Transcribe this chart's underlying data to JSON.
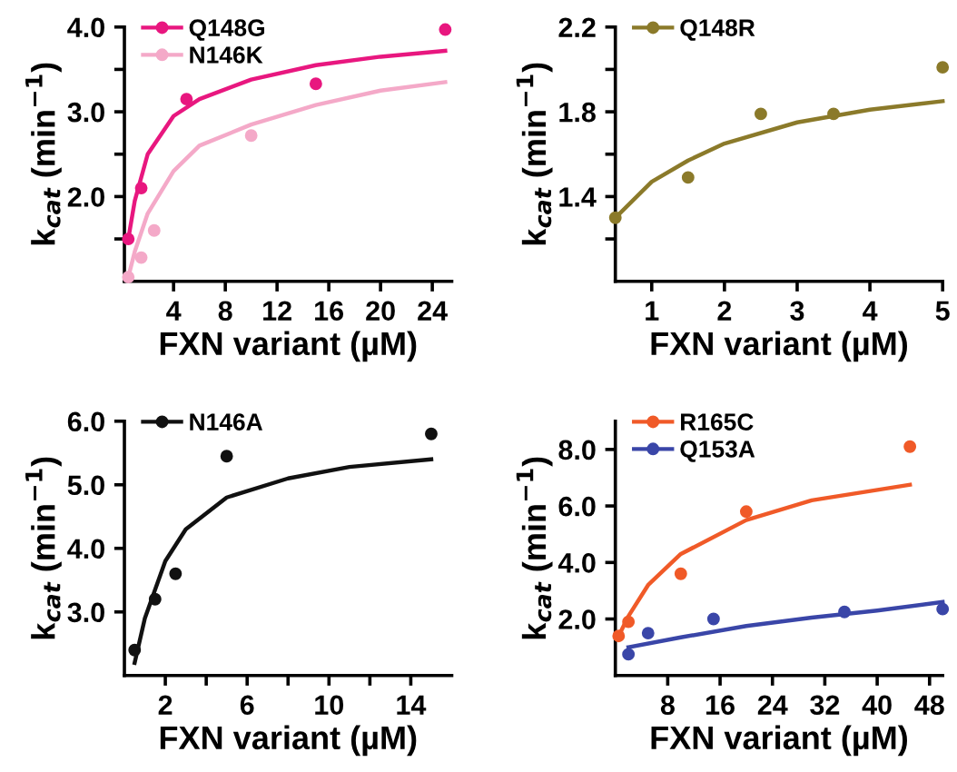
{
  "chart_data": [
    {
      "type": "scatter",
      "xlabel": "FXN variant (µM)",
      "ylabel": "k$_{cat}$ (min$^{−1}$)",
      "xlim": [
        0.2,
        25.5
      ],
      "ylim": [
        1.0,
        4.0
      ],
      "xticks": [
        4,
        8,
        12,
        16,
        20,
        24
      ],
      "yticks": [
        {
          "value": 1.5,
          "label": null
        },
        {
          "value": 2,
          "label": "2.0"
        },
        {
          "value": 2.5,
          "label": null
        },
        {
          "value": 3,
          "label": "3.0"
        },
        {
          "value": 3.5,
          "label": null
        },
        {
          "value": 4,
          "label": "4.0"
        }
      ],
      "legend": "top left",
      "grid": false,
      "series": [
        {
          "name": "Q148G",
          "marker": "circle",
          "color": "#e8177f",
          "x": [
            0.5,
            1.5,
            5,
            15,
            25
          ],
          "values": [
            1.5,
            2.1,
            3.15,
            3.33,
            3.97
          ]
        },
        {
          "name": "N146K",
          "marker": "circle",
          "color": "#f4a9c8",
          "x": [
            0.5,
            1.5,
            2.5,
            10
          ],
          "values": [
            1.05,
            1.28,
            1.6,
            2.72
          ]
        },
        {
          "type": "line",
          "color": "#e8177f",
          "x": [
            0.5,
            1,
            2,
            4,
            6,
            10,
            15,
            20,
            25
          ],
          "values": [
            1.5,
            1.95,
            2.5,
            2.95,
            3.15,
            3.38,
            3.55,
            3.65,
            3.72
          ]
        },
        {
          "type": "line",
          "color": "#f4a9c8",
          "x": [
            0.5,
            1,
            2,
            4,
            6,
            10,
            15,
            20,
            25
          ],
          "values": [
            1.05,
            1.35,
            1.8,
            2.3,
            2.6,
            2.85,
            3.08,
            3.25,
            3.35
          ]
        }
      ]
    },
    {
      "type": "scatter",
      "xlabel": "FXN variant (µM)",
      "ylabel": "k$_{cat}$ (min$^{−1}$)",
      "xlim": [
        0.5,
        5
      ],
      "ylim": [
        1.0,
        2.2
      ],
      "xticks": [
        1,
        2,
        3,
        4,
        5
      ],
      "yticks": [
        {
          "value": 1.2,
          "label": null
        },
        {
          "value": 1.4,
          "label": "1.4"
        },
        {
          "value": 1.6,
          "label": null
        },
        {
          "value": 1.8,
          "label": "1.8"
        },
        {
          "value": 2.0,
          "label": null
        },
        {
          "value": 2.2,
          "label": "2.2"
        }
      ],
      "legend": "top left",
      "grid": false,
      "series": [
        {
          "name": "Q148R",
          "marker": "circle",
          "color": "#8b7a2a",
          "x": [
            0.5,
            1.5,
            2.5,
            3.5,
            5
          ],
          "values": [
            1.3,
            1.49,
            1.79,
            1.79,
            2.01
          ]
        },
        {
          "type": "line",
          "color": "#8b7a2a",
          "x": [
            0.5,
            1,
            1.5,
            2,
            3,
            4,
            5
          ],
          "values": [
            1.3,
            1.47,
            1.57,
            1.65,
            1.75,
            1.81,
            1.85
          ]
        }
      ]
    },
    {
      "type": "scatter",
      "xlabel": "FXN variant (µM)",
      "ylabel": "k$_{cat}$ (min$^{−1}$)",
      "xlim": [
        0,
        16
      ],
      "ylim": [
        2.0,
        6.0
      ],
      "xticks": [
        2,
        {
          "value": 4,
          "label": null
        },
        6,
        {
          "value": 8,
          "label": null
        },
        10,
        {
          "value": 12,
          "label": null
        },
        14
      ],
      "yticks": [
        {
          "value": 3,
          "label": "3.0"
        },
        {
          "value": 4,
          "label": "4.0"
        },
        {
          "value": 5,
          "label": "5.0"
        },
        {
          "value": 6,
          "label": "6.0"
        }
      ],
      "legend": "top left",
      "grid": false,
      "series": [
        {
          "name": "N146A",
          "marker": "circle",
          "color": "#111111",
          "x": [
            0.5,
            1.5,
            2.5,
            5,
            15
          ],
          "values": [
            2.4,
            3.2,
            3.6,
            5.45,
            5.8
          ]
        },
        {
          "type": "line",
          "color": "#111111",
          "x": [
            0.5,
            1,
            2,
            3,
            5,
            8,
            11,
            15
          ],
          "values": [
            2.2,
            2.9,
            3.8,
            4.3,
            4.8,
            5.1,
            5.28,
            5.4
          ]
        }
      ]
    },
    {
      "type": "scatter",
      "xlabel": "FXN variant (µM)",
      "ylabel": "k$_{cat}$ (min$^{−1}$)",
      "xlim": [
        0,
        50
      ],
      "ylim": [
        0,
        9
      ],
      "xticks": [
        8,
        16,
        24,
        32,
        40,
        48
      ],
      "yticks": [
        {
          "value": 2,
          "label": "2.0"
        },
        {
          "value": 4,
          "label": "4.0"
        },
        {
          "value": 6,
          "label": "6.0"
        },
        {
          "value": 8,
          "label": "8.0"
        }
      ],
      "legend": "top left",
      "grid": false,
      "series": [
        {
          "name": "R165C",
          "marker": "circle",
          "color": "#f05a28",
          "x": [
            0.5,
            2,
            10,
            20,
            45
          ],
          "values": [
            1.4,
            1.9,
            3.6,
            5.8,
            8.1
          ]
        },
        {
          "name": "Q153A",
          "marker": "circle",
          "color": "#3a46a8",
          "x": [
            2,
            5,
            15,
            35,
            50
          ],
          "values": [
            0.75,
            1.5,
            2.0,
            2.25,
            2.35
          ]
        },
        {
          "type": "line",
          "color": "#f05a28",
          "x": [
            0.5,
            2,
            5,
            10,
            20,
            30,
            45
          ],
          "values": [
            1.4,
            2.1,
            3.2,
            4.3,
            5.5,
            6.2,
            6.75
          ]
        },
        {
          "type": "line",
          "color": "#3a46a8",
          "x": [
            2,
            10,
            20,
            30,
            40,
            50
          ],
          "values": [
            1.0,
            1.35,
            1.75,
            2.05,
            2.3,
            2.6
          ]
        }
      ]
    }
  ]
}
